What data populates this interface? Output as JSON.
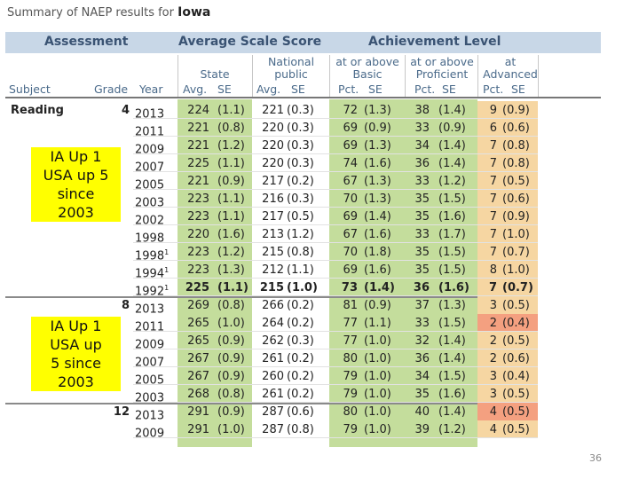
{
  "title": {
    "prefix": "Summary of NAEP results for",
    "state": "Iowa"
  },
  "header": {
    "assessment": "Assessment",
    "avg_scale_score": "Average Scale Score",
    "achievement_level": "Achievement Level",
    "state_line": "State",
    "national_line1": "National",
    "national_line2": "public",
    "basic_line1": "at or above",
    "basic_line2": "Basic",
    "proficient_line1": "at or above",
    "proficient_line2": "Proficient",
    "advanced_line1": "at",
    "advanced_line2": "Advanced"
  },
  "columns": {
    "subject": "Subject",
    "grade": "Grade",
    "year": "Year",
    "avg": "Avg.",
    "se": "SE",
    "pct": "Pct."
  },
  "rows": [
    {
      "subject": "Reading",
      "grade": "4",
      "year": "2013",
      "sup": "",
      "s": "224",
      "sse": "(1.1)",
      "n": "221",
      "nse": "(0.3)",
      "b": "72",
      "bse": "(1.3)",
      "p": "38",
      "pse": "(1.4)",
      "a": "9",
      "ase": "(0.9)",
      "bold": false,
      "adv_color": "#f6d6a2"
    },
    {
      "subject": "",
      "grade": "",
      "year": "2011",
      "sup": "",
      "s": "221",
      "sse": "(0.8)",
      "n": "220",
      "nse": "(0.3)",
      "b": "69",
      "bse": "(0.9)",
      "p": "33",
      "pse": "(0.9)",
      "a": "6",
      "ase": "(0.6)",
      "bold": false,
      "adv_color": "#f6d6a2"
    },
    {
      "subject": "",
      "grade": "",
      "year": "2009",
      "sup": "",
      "s": "221",
      "sse": "(1.2)",
      "n": "220",
      "nse": "(0.3)",
      "b": "69",
      "bse": "(1.3)",
      "p": "34",
      "pse": "(1.4)",
      "a": "7",
      "ase": "(0.8)",
      "bold": false,
      "adv_color": "#f6d6a2"
    },
    {
      "subject": "",
      "grade": "",
      "year": "2007",
      "sup": "",
      "s": "225",
      "sse": "(1.1)",
      "n": "220",
      "nse": "(0.3)",
      "b": "74",
      "bse": "(1.6)",
      "p": "36",
      "pse": "(1.4)",
      "a": "7",
      "ase": "(0.8)",
      "bold": false,
      "adv_color": "#f6d6a2"
    },
    {
      "subject": "",
      "grade": "",
      "year": "2005",
      "sup": "",
      "s": "221",
      "sse": "(0.9)",
      "n": "217",
      "nse": "(0.2)",
      "b": "67",
      "bse": "(1.3)",
      "p": "33",
      "pse": "(1.2)",
      "a": "7",
      "ase": "(0.5)",
      "bold": false,
      "adv_color": "#f6d6a2"
    },
    {
      "subject": "",
      "grade": "",
      "year": "2003",
      "sup": "",
      "s": "223",
      "sse": "(1.1)",
      "n": "216",
      "nse": "(0.3)",
      "b": "70",
      "bse": "(1.3)",
      "p": "35",
      "pse": "(1.5)",
      "a": "7",
      "ase": "(0.6)",
      "bold": false,
      "adv_color": "#f6d6a2"
    },
    {
      "subject": "",
      "grade": "",
      "year": "2002",
      "sup": "",
      "s": "223",
      "sse": "(1.1)",
      "n": "217",
      "nse": "(0.5)",
      "b": "69",
      "bse": "(1.4)",
      "p": "35",
      "pse": "(1.6)",
      "a": "7",
      "ase": "(0.9)",
      "bold": false,
      "adv_color": "#f6d6a2"
    },
    {
      "subject": "",
      "grade": "",
      "year": "1998",
      "sup": "",
      "s": "220",
      "sse": "(1.6)",
      "n": "213",
      "nse": "(1.2)",
      "b": "67",
      "bse": "(1.6)",
      "p": "33",
      "pse": "(1.7)",
      "a": "7",
      "ase": "(1.0)",
      "bold": false,
      "adv_color": "#f6d6a2"
    },
    {
      "subject": "",
      "grade": "",
      "year": "1998",
      "sup": "1",
      "s": "223",
      "sse": "(1.2)",
      "n": "215",
      "nse": "(0.8)",
      "b": "70",
      "bse": "(1.8)",
      "p": "35",
      "pse": "(1.5)",
      "a": "7",
      "ase": "(0.7)",
      "bold": false,
      "adv_color": "#f6d6a2"
    },
    {
      "subject": "",
      "grade": "",
      "year": "1994",
      "sup": "1",
      "s": "223",
      "sse": "(1.3)",
      "n": "212",
      "nse": "(1.1)",
      "b": "69",
      "bse": "(1.6)",
      "p": "35",
      "pse": "(1.5)",
      "a": "8",
      "ase": "(1.0)",
      "bold": false,
      "adv_color": "#f6d6a2"
    },
    {
      "subject": "",
      "grade": "",
      "year": "1992",
      "sup": "1",
      "s": "225",
      "sse": "(1.1)",
      "n": "215",
      "nse": "(1.0)",
      "b": "73",
      "bse": "(1.4)",
      "p": "36",
      "pse": "(1.6)",
      "a": "7",
      "ase": "(0.7)",
      "bold": true,
      "adv_color": "#f6d6a2"
    },
    {
      "subject": "",
      "grade": "8",
      "year": "2013",
      "sup": "",
      "s": "269",
      "sse": "(0.8)",
      "n": "266",
      "nse": "(0.2)",
      "b": "81",
      "bse": "(0.9)",
      "p": "37",
      "pse": "(1.3)",
      "a": "3",
      "ase": "(0.5)",
      "bold": false,
      "adv_color": "#f6d6a2"
    },
    {
      "subject": "",
      "grade": "",
      "year": "2011",
      "sup": "",
      "s": "265",
      "sse": "(1.0)",
      "n": "264",
      "nse": "(0.2)",
      "b": "77",
      "bse": "(1.1)",
      "p": "33",
      "pse": "(1.5)",
      "a": "2",
      "ase": "(0.4)",
      "bold": false,
      "adv_color": "#f4a080"
    },
    {
      "subject": "",
      "grade": "",
      "year": "2009",
      "sup": "",
      "s": "265",
      "sse": "(0.9)",
      "n": "262",
      "nse": "(0.3)",
      "b": "77",
      "bse": "(1.0)",
      "p": "32",
      "pse": "(1.4)",
      "a": "2",
      "ase": "(0.5)",
      "bold": false,
      "adv_color": "#f6d6a2"
    },
    {
      "subject": "",
      "grade": "",
      "year": "2007",
      "sup": "",
      "s": "267",
      "sse": "(0.9)",
      "n": "261",
      "nse": "(0.2)",
      "b": "80",
      "bse": "(1.0)",
      "p": "36",
      "pse": "(1.4)",
      "a": "2",
      "ase": "(0.6)",
      "bold": false,
      "adv_color": "#f6d6a2"
    },
    {
      "subject": "",
      "grade": "",
      "year": "2005",
      "sup": "",
      "s": "267",
      "sse": "(0.9)",
      "n": "260",
      "nse": "(0.2)",
      "b": "79",
      "bse": "(1.0)",
      "p": "34",
      "pse": "(1.5)",
      "a": "3",
      "ase": "(0.4)",
      "bold": false,
      "adv_color": "#f6d6a2"
    },
    {
      "subject": "",
      "grade": "",
      "year": "2003",
      "sup": "",
      "s": "268",
      "sse": "(0.8)",
      "n": "261",
      "nse": "(0.2)",
      "b": "79",
      "bse": "(1.0)",
      "p": "35",
      "pse": "(1.6)",
      "a": "3",
      "ase": "(0.5)",
      "bold": false,
      "adv_color": "#f6d6a2"
    },
    {
      "subject": "",
      "grade": "12",
      "year": "2013",
      "sup": "",
      "s": "291",
      "sse": "(0.9)",
      "n": "287",
      "nse": "(0.6)",
      "b": "80",
      "bse": "(1.0)",
      "p": "40",
      "pse": "(1.4)",
      "a": "4",
      "ase": "(0.5)",
      "bold": false,
      "adv_color": "#f4a080"
    },
    {
      "subject": "",
      "grade": "",
      "year": "2009",
      "sup": "",
      "s": "291",
      "sse": "(1.0)",
      "n": "287",
      "nse": "(0.8)",
      "b": "79",
      "bse": "(1.0)",
      "p": "39",
      "pse": "(1.2)",
      "a": "4",
      "ase": "(0.5)",
      "bold": false,
      "adv_color": "#f6d6a2"
    }
  ],
  "notes": {
    "grade4": [
      "IA Up 1",
      "USA up 5",
      "since",
      "2003"
    ],
    "grade8": [
      "IA Up 1",
      "USA up",
      "5 since",
      "2003"
    ]
  },
  "colors": {
    "state_bg": "#c4dd9c",
    "national_bg": "#ffffff",
    "basic_bg": "#c4dd9c",
    "proficient_bg": "#c4dd9c",
    "advanced_bg": "#f6d6a2",
    "advanced_low": "#f4a080",
    "header_band": "#c8d7e7"
  },
  "slide_number": "36"
}
